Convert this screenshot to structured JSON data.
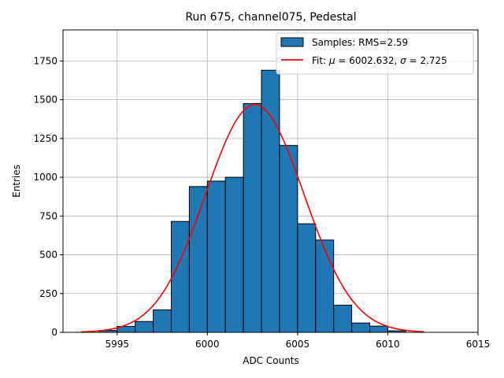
{
  "chart_data": {
    "type": "bar",
    "title": "Run 675, channel075, Pedestal",
    "xlabel": "ADC Counts",
    "ylabel": "Entries",
    "xlim": [
      5992.0,
      6015.0
    ],
    "ylim": [
      0,
      1950
    ],
    "xticks": [
      5995,
      6000,
      6005,
      6010,
      6015
    ],
    "yticks": [
      0,
      250,
      500,
      750,
      1000,
      1250,
      1500,
      1750
    ],
    "grid": true,
    "legend_position": "top-right",
    "histogram": {
      "name": "Samples: RMS=2.59",
      "color": "#1f77b4",
      "bin_edges": [
        5994,
        5995,
        5996,
        5997,
        5998,
        5999,
        6000,
        6001,
        6002,
        6003,
        6004,
        6005,
        6006,
        6007,
        6008,
        6009,
        6010,
        6011
      ],
      "counts": [
        12,
        38,
        70,
        145,
        715,
        940,
        975,
        1000,
        1475,
        1690,
        1205,
        700,
        595,
        175,
        60,
        40,
        10
      ]
    },
    "fit": {
      "name_prefix": "Fit: ",
      "mu_symbol": "μ",
      "mu_text": " = 6002.632, ",
      "sigma_symbol": "σ",
      "sigma_text": " = 2.725",
      "color": "#ff0000",
      "mu": 6002.632,
      "sigma": 2.725,
      "amplitude": 1468,
      "x_range": [
        5993,
        6012
      ]
    }
  }
}
